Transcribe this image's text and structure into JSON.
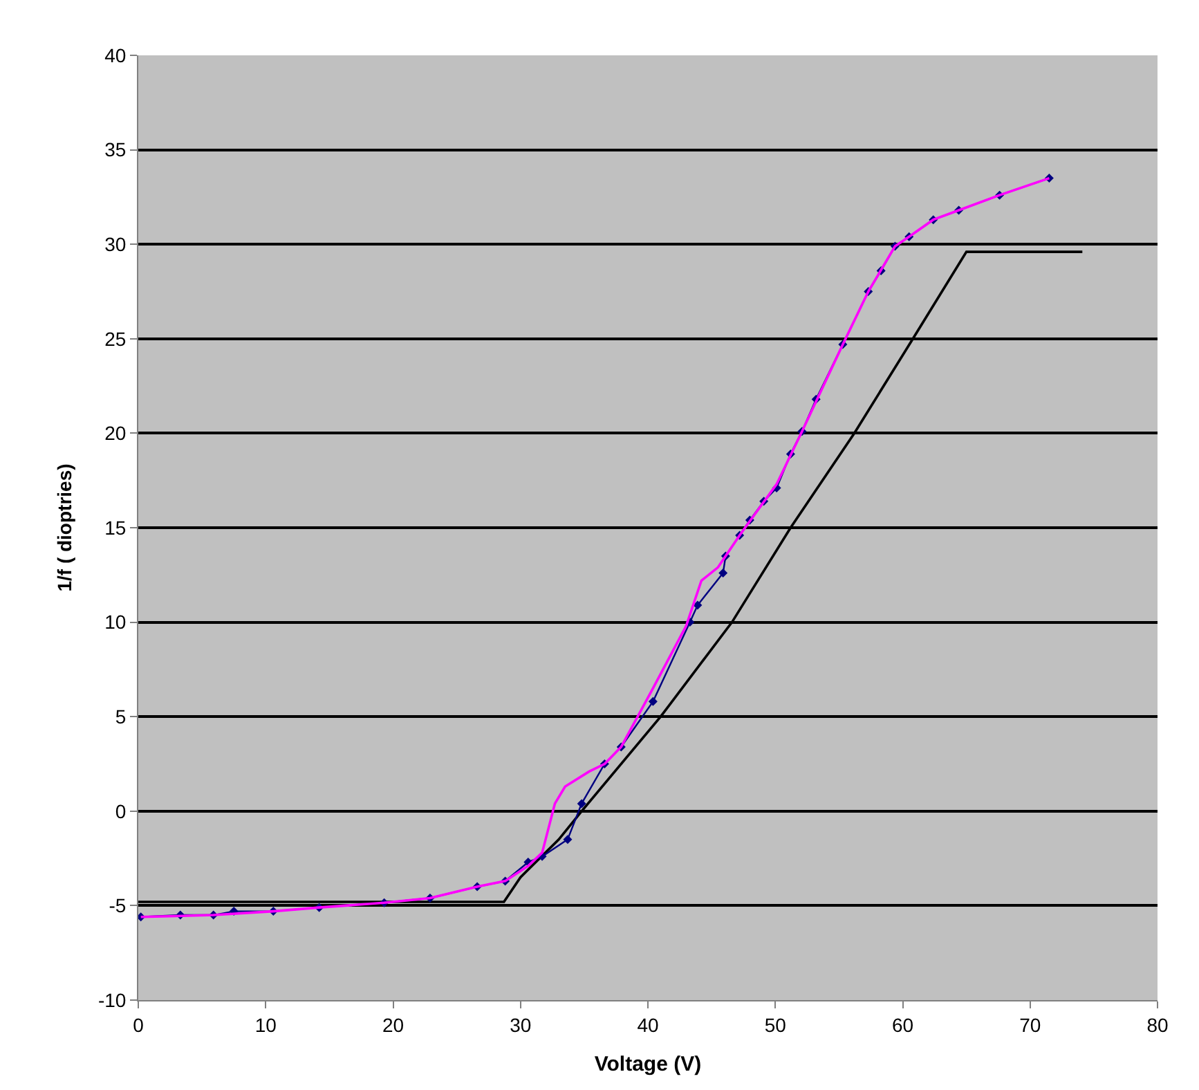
{
  "chart_data": {
    "type": "line",
    "xlabel": "Voltage (V)",
    "ylabel": "1/f ( dioptries)",
    "xlim": [
      0,
      80
    ],
    "xticks": [
      0,
      10,
      20,
      30,
      40,
      50,
      60,
      70,
      80
    ],
    "ylim": [
      -10,
      40
    ],
    "yticks": [
      -10,
      -5,
      0,
      5,
      10,
      15,
      20,
      25,
      30,
      35,
      40
    ],
    "grid": "y",
    "legend": false,
    "series": [
      {
        "color": "#000000",
        "marker": "none",
        "x": [
          0,
          28.7,
          30,
          33,
          34.8,
          41,
          46.6,
          51.2,
          56.2,
          60.8,
          65,
          74.1
        ],
        "values": [
          -4.8,
          -4.8,
          -3.5,
          -1.5,
          0,
          5,
          10,
          15,
          20,
          25,
          29.6,
          29.6
        ]
      },
      {
        "color": "#000080",
        "marker": "diamond",
        "x": [
          0.2,
          3.3,
          5.9,
          7.5,
          10.6,
          14.2,
          19.3,
          22.9,
          26.6,
          28.8,
          30.6,
          31.7,
          33.7,
          34.8,
          36.6,
          37.9,
          40.4,
          43.3,
          43.9,
          45.9,
          46.1,
          47.2,
          48,
          49.1,
          50.1,
          51.2,
          52.1,
          53.2,
          55.3,
          57.3,
          58.3,
          59.4,
          60.5,
          62.4,
          64.4,
          67.6,
          71.5
        ],
        "values": [
          -5.6,
          -5.5,
          -5.5,
          -5.3,
          -5.3,
          -5.1,
          -4.85,
          -4.6,
          -4.0,
          -3.7,
          -2.7,
          -2.4,
          -1.5,
          0.4,
          2.5,
          3.4,
          5.8,
          10,
          10.9,
          12.6,
          13.5,
          14.6,
          15.4,
          16.4,
          17.1,
          18.9,
          20.1,
          21.8,
          24.7,
          27.5,
          28.6,
          29.9,
          30.4,
          31.3,
          31.8,
          32.6,
          33.5
        ]
      },
      {
        "color": "#ff00ff",
        "marker": "none",
        "x": [
          0.2,
          5.9,
          10.6,
          14.2,
          19.3,
          22.9,
          26.6,
          28.8,
          30.6,
          31.7,
          32.7,
          33.5,
          35.4,
          36.6,
          37.9,
          40.4,
          43,
          44.2,
          45.5,
          46.3,
          47.2,
          50.1,
          52.1,
          55.3,
          57.3,
          59.4,
          60.5,
          62.4,
          64.4,
          67.6,
          71.5
        ],
        "values": [
          -5.6,
          -5.5,
          -5.3,
          -5.1,
          -4.85,
          -4.6,
          -4.0,
          -3.7,
          -2.9,
          -2.2,
          0.4,
          1.3,
          2.1,
          2.5,
          3.4,
          6.5,
          9.8,
          12.2,
          12.9,
          13.7,
          14.6,
          17.3,
          20.1,
          24.7,
          27.5,
          29.9,
          30.4,
          31.3,
          31.8,
          32.6,
          33.5
        ]
      }
    ]
  }
}
